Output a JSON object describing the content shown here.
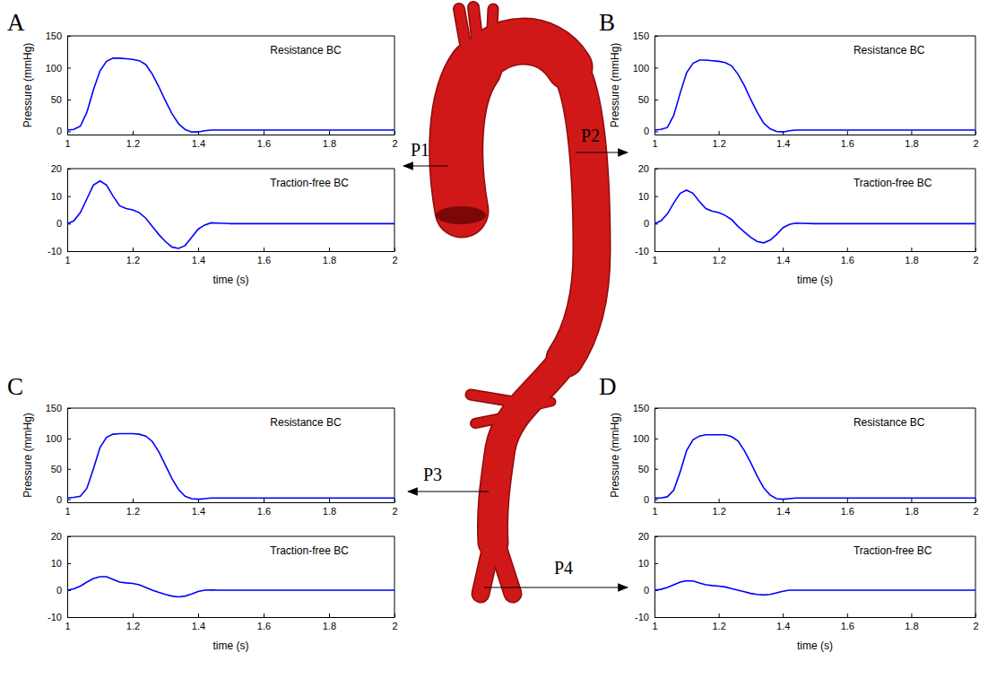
{
  "chart_data": [
    {
      "type": "line",
      "title": "Resistance BC",
      "ylabel": "Pressure (mmHg)",
      "x": [
        1,
        1.02,
        1.04,
        1.06,
        1.08,
        1.1,
        1.12,
        1.14,
        1.16,
        1.18,
        1.2,
        1.22,
        1.24,
        1.26,
        1.28,
        1.3,
        1.32,
        1.34,
        1.36,
        1.38,
        1.4,
        1.42,
        1.44,
        1.46,
        1.5,
        1.6,
        1.7,
        1.8,
        1.9,
        2
      ],
      "values": [
        2,
        3,
        8,
        30,
        65,
        95,
        110,
        115,
        115,
        114,
        113,
        111,
        105,
        90,
        70,
        48,
        28,
        12,
        3,
        -1,
        -1,
        1,
        2,
        2,
        2,
        2,
        2,
        2,
        2,
        2
      ],
      "color": "#0000ff",
      "xlim": [
        1,
        2
      ],
      "xticks": [
        1,
        1.2,
        1.4,
        1.6,
        1.8,
        2
      ],
      "ylim": [
        -5,
        150
      ],
      "yticks": [
        0,
        50,
        100,
        150
      ]
    },
    {
      "type": "line",
      "title": "Traction-free BC",
      "xlabel": "time (s)",
      "x": [
        1,
        1.02,
        1.04,
        1.06,
        1.08,
        1.1,
        1.12,
        1.14,
        1.16,
        1.18,
        1.2,
        1.22,
        1.24,
        1.26,
        1.28,
        1.3,
        1.32,
        1.34,
        1.36,
        1.38,
        1.4,
        1.42,
        1.44,
        1.46,
        1.5,
        1.6,
        1.7,
        1.8,
        1.9,
        2
      ],
      "values": [
        0,
        1,
        4,
        9,
        14,
        15.5,
        14,
        10,
        6.5,
        5.5,
        5,
        4,
        2,
        -1,
        -4,
        -6.5,
        -8.5,
        -9,
        -8,
        -5,
        -2,
        -0.5,
        0.3,
        0.2,
        0,
        0,
        0,
        0,
        0,
        0
      ],
      "color": "#0000ff",
      "xlim": [
        1,
        2
      ],
      "xticks": [
        1,
        1.2,
        1.4,
        1.6,
        1.8,
        2
      ],
      "ylim": [
        -10,
        20
      ],
      "yticks": [
        -10,
        0,
        10,
        20
      ]
    },
    {
      "type": "line",
      "title": "Resistance BC",
      "ylabel": "Pressure (mmHg)",
      "x": [
        1,
        1.02,
        1.04,
        1.06,
        1.08,
        1.1,
        1.12,
        1.14,
        1.16,
        1.18,
        1.2,
        1.22,
        1.24,
        1.26,
        1.28,
        1.3,
        1.32,
        1.34,
        1.36,
        1.38,
        1.4,
        1.42,
        1.44,
        1.46,
        1.5,
        1.6,
        1.7,
        1.8,
        1.9,
        2
      ],
      "values": [
        2,
        3,
        6,
        25,
        60,
        92,
        107,
        112,
        112,
        111,
        110,
        108,
        103,
        90,
        72,
        50,
        30,
        13,
        4,
        0,
        -1,
        1,
        2,
        2,
        2,
        2,
        2,
        2,
        2,
        2
      ],
      "color": "#0000ff",
      "xlim": [
        1,
        2
      ],
      "xticks": [
        1,
        1.2,
        1.4,
        1.6,
        1.8,
        2
      ],
      "ylim": [
        -5,
        150
      ],
      "yticks": [
        0,
        50,
        100,
        150
      ]
    },
    {
      "type": "line",
      "title": "Traction-free BC",
      "xlabel": "time (s)",
      "x": [
        1,
        1.02,
        1.04,
        1.06,
        1.08,
        1.1,
        1.12,
        1.14,
        1.16,
        1.18,
        1.2,
        1.22,
        1.24,
        1.26,
        1.28,
        1.3,
        1.32,
        1.34,
        1.36,
        1.38,
        1.4,
        1.42,
        1.44,
        1.46,
        1.5,
        1.6,
        1.7,
        1.8,
        1.9,
        2
      ],
      "values": [
        0,
        1,
        3.5,
        7.5,
        11,
        12.2,
        11,
        8,
        5.5,
        4.5,
        4,
        3,
        1.5,
        -1,
        -3,
        -5,
        -6.5,
        -7,
        -6,
        -4,
        -1.5,
        -0.3,
        0.2,
        0.1,
        0,
        0,
        0,
        0,
        0,
        0
      ],
      "color": "#0000ff",
      "xlim": [
        1,
        2
      ],
      "xticks": [
        1,
        1.2,
        1.4,
        1.6,
        1.8,
        2
      ],
      "ylim": [
        -10,
        20
      ],
      "yticks": [
        -10,
        0,
        10,
        20
      ]
    },
    {
      "type": "line",
      "title": "Resistance BC",
      "ylabel": "Pressure (mmHg)",
      "x": [
        1,
        1.02,
        1.04,
        1.06,
        1.08,
        1.1,
        1.12,
        1.14,
        1.16,
        1.18,
        1.2,
        1.22,
        1.24,
        1.26,
        1.28,
        1.3,
        1.32,
        1.34,
        1.36,
        1.38,
        1.4,
        1.42,
        1.44,
        1.46,
        1.5,
        1.6,
        1.7,
        1.8,
        1.9,
        2
      ],
      "values": [
        2,
        3,
        5,
        18,
        50,
        85,
        102,
        107,
        108,
        108,
        108,
        107,
        104,
        95,
        78,
        56,
        34,
        16,
        5,
        1,
        0,
        1,
        2,
        2,
        2,
        2,
        2,
        2,
        2,
        2
      ],
      "color": "#0000ff",
      "xlim": [
        1,
        2
      ],
      "xticks": [
        1,
        1.2,
        1.4,
        1.6,
        1.8,
        2
      ],
      "ylim": [
        -5,
        150
      ],
      "yticks": [
        0,
        50,
        100,
        150
      ]
    },
    {
      "type": "line",
      "title": "Traction-free BC",
      "xlabel": "time (s)",
      "x": [
        1,
        1.02,
        1.04,
        1.06,
        1.08,
        1.1,
        1.12,
        1.14,
        1.16,
        1.18,
        1.2,
        1.22,
        1.24,
        1.26,
        1.28,
        1.3,
        1.32,
        1.34,
        1.36,
        1.38,
        1.4,
        1.42,
        1.44,
        1.46,
        1.5,
        1.6,
        1.7,
        1.8,
        1.9,
        2
      ],
      "values": [
        0,
        0.5,
        1.5,
        3,
        4.3,
        5,
        5,
        4,
        3,
        2.7,
        2.5,
        2,
        1,
        0,
        -0.8,
        -1.6,
        -2.2,
        -2.5,
        -2.2,
        -1.4,
        -0.5,
        0,
        0.1,
        0,
        0,
        0,
        0,
        0,
        0,
        0
      ],
      "color": "#0000ff",
      "xlim": [
        1,
        2
      ],
      "xticks": [
        1,
        1.2,
        1.4,
        1.6,
        1.8,
        2
      ],
      "ylim": [
        -10,
        20
      ],
      "yticks": [
        -10,
        0,
        10,
        20
      ]
    },
    {
      "type": "line",
      "title": "Resistance BC",
      "ylabel": "Pressure (mmHg)",
      "x": [
        1,
        1.02,
        1.04,
        1.06,
        1.08,
        1.1,
        1.12,
        1.14,
        1.16,
        1.18,
        1.2,
        1.22,
        1.24,
        1.26,
        1.28,
        1.3,
        1.32,
        1.34,
        1.36,
        1.38,
        1.4,
        1.42,
        1.44,
        1.46,
        1.5,
        1.6,
        1.7,
        1.8,
        1.9,
        2
      ],
      "values": [
        2,
        2,
        4,
        15,
        45,
        80,
        98,
        104,
        106,
        106,
        106,
        106,
        103,
        96,
        80,
        60,
        38,
        19,
        7,
        1,
        0,
        1,
        2,
        2,
        2,
        2,
        2,
        2,
        2,
        2
      ],
      "color": "#0000ff",
      "xlim": [
        1,
        2
      ],
      "xticks": [
        1,
        1.2,
        1.4,
        1.6,
        1.8,
        2
      ],
      "ylim": [
        -5,
        150
      ],
      "yticks": [
        0,
        50,
        100,
        150
      ]
    },
    {
      "type": "line",
      "title": "Traction-free BC",
      "xlabel": "time (s)",
      "x": [
        1,
        1.02,
        1.04,
        1.06,
        1.08,
        1.1,
        1.12,
        1.14,
        1.16,
        1.18,
        1.2,
        1.22,
        1.24,
        1.26,
        1.28,
        1.3,
        1.32,
        1.34,
        1.36,
        1.38,
        1.4,
        1.42,
        1.44,
        1.46,
        1.5,
        1.6,
        1.7,
        1.8,
        1.9,
        2
      ],
      "values": [
        0,
        0.3,
        1,
        2,
        3,
        3.5,
        3.4,
        2.7,
        2,
        1.7,
        1.5,
        1.2,
        0.6,
        0,
        -0.6,
        -1.2,
        -1.6,
        -1.8,
        -1.6,
        -1,
        -0.4,
        0,
        0,
        0,
        0,
        0,
        0,
        0,
        0,
        0
      ],
      "color": "#0000ff",
      "xlim": [
        1,
        2
      ],
      "xticks": [
        1,
        1.2,
        1.4,
        1.6,
        1.8,
        2
      ],
      "ylim": [
        -10,
        20
      ],
      "yticks": [
        -10,
        0,
        10,
        20
      ]
    }
  ],
  "figure": {
    "panel_labels": [
      "A",
      "B",
      "C",
      "D"
    ],
    "point_labels": [
      "P1",
      "P2",
      "P3",
      "P4"
    ]
  }
}
